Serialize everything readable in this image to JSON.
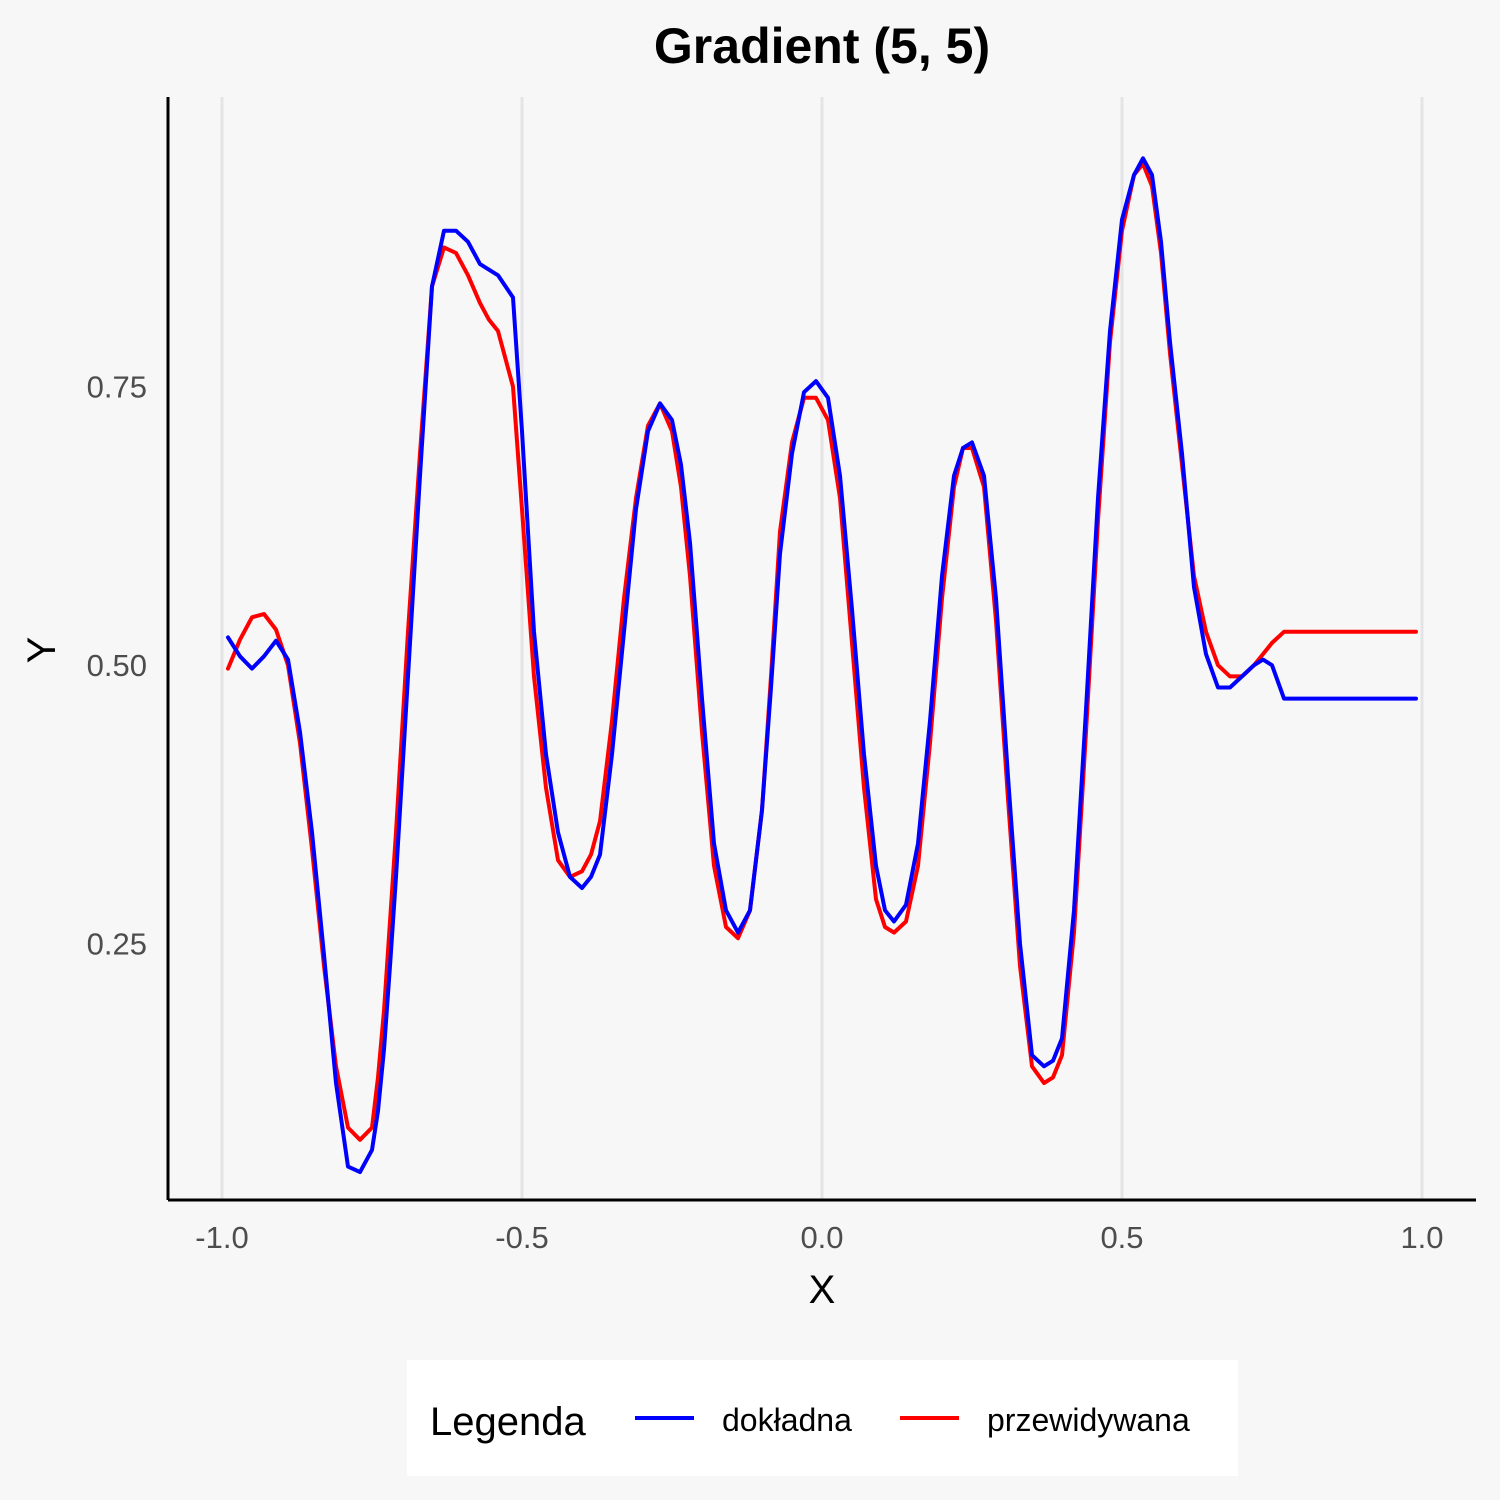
{
  "chart_data": {
    "type": "line",
    "title": "Gradient (5, 5)",
    "xlabel": "X",
    "ylabel": "Y",
    "xlim": [
      -1.09,
      1.09
    ],
    "ylim": [
      0.02,
      1.01
    ],
    "xticks": [
      -1.0,
      -0.5,
      0.0,
      0.5,
      1.0
    ],
    "xtick_labels": [
      "-1.0",
      "-0.5",
      "0.0",
      "0.5",
      "1.0"
    ],
    "yticks": [
      0.25,
      0.5,
      0.75
    ],
    "ytick_labels": [
      "0.25",
      "0.50",
      "0.75"
    ],
    "grid": "vertical major lines only",
    "legend": {
      "title": "Legenda",
      "position": "bottom"
    },
    "series": [
      {
        "name": "dokładna",
        "color": "#0000ff",
        "x": [
          -0.99,
          -0.97,
          -0.95,
          -0.93,
          -0.91,
          -0.89,
          -0.87,
          -0.85,
          -0.83,
          -0.81,
          -0.79,
          -0.77,
          -0.75,
          -0.74,
          -0.73,
          -0.72,
          -0.71,
          -0.7,
          -0.69,
          -0.67,
          -0.65,
          -0.63,
          -0.61,
          -0.59,
          -0.57,
          -0.555,
          -0.54,
          -0.515,
          -0.5,
          -0.48,
          -0.46,
          -0.44,
          -0.42,
          -0.4,
          -0.385,
          -0.37,
          -0.35,
          -0.33,
          -0.31,
          -0.29,
          -0.27,
          -0.25,
          -0.235,
          -0.22,
          -0.2,
          -0.18,
          -0.16,
          -0.14,
          -0.12,
          -0.1,
          -0.085,
          -0.07,
          -0.05,
          -0.03,
          -0.01,
          0.01,
          0.03,
          0.05,
          0.07,
          0.09,
          0.105,
          0.12,
          0.14,
          0.16,
          0.18,
          0.2,
          0.22,
          0.235,
          0.25,
          0.27,
          0.29,
          0.31,
          0.33,
          0.35,
          0.37,
          0.385,
          0.4,
          0.42,
          0.44,
          0.46,
          0.48,
          0.5,
          0.52,
          0.535,
          0.55,
          0.565,
          0.58,
          0.6,
          0.62,
          0.64,
          0.66,
          0.68,
          0.7,
          0.72,
          0.735,
          0.75,
          0.77,
          0.79,
          0.81,
          0.83,
          0.85,
          0.87,
          0.89,
          0.91,
          0.93,
          0.95,
          0.97,
          0.99
        ],
        "y": [
          0.525,
          0.508,
          0.497,
          0.508,
          0.522,
          0.505,
          0.44,
          0.35,
          0.24,
          0.125,
          0.05,
          0.045,
          0.065,
          0.1,
          0.155,
          0.23,
          0.31,
          0.4,
          0.49,
          0.67,
          0.84,
          0.89,
          0.89,
          0.88,
          0.86,
          0.855,
          0.85,
          0.83,
          0.71,
          0.53,
          0.42,
          0.35,
          0.31,
          0.3,
          0.31,
          0.33,
          0.42,
          0.53,
          0.64,
          0.71,
          0.735,
          0.72,
          0.68,
          0.61,
          0.47,
          0.34,
          0.28,
          0.26,
          0.28,
          0.37,
          0.48,
          0.6,
          0.69,
          0.745,
          0.755,
          0.74,
          0.67,
          0.55,
          0.42,
          0.32,
          0.28,
          0.27,
          0.285,
          0.34,
          0.45,
          0.58,
          0.67,
          0.695,
          0.7,
          0.67,
          0.56,
          0.4,
          0.25,
          0.15,
          0.14,
          0.145,
          0.165,
          0.28,
          0.46,
          0.65,
          0.8,
          0.9,
          0.94,
          0.955,
          0.94,
          0.88,
          0.79,
          0.69,
          0.57,
          0.51,
          0.48,
          0.48,
          0.49,
          0.5,
          0.505,
          0.5,
          0.47,
          0.47,
          0.47,
          0.47,
          0.47,
          0.47,
          0.47,
          0.47,
          0.47,
          0.47,
          0.47,
          0.47
        ]
      },
      {
        "name": "przewidywana",
        "color": "#ff0000",
        "x": [
          -0.99,
          -0.97,
          -0.95,
          -0.93,
          -0.91,
          -0.89,
          -0.87,
          -0.85,
          -0.83,
          -0.81,
          -0.79,
          -0.77,
          -0.75,
          -0.74,
          -0.73,
          -0.72,
          -0.71,
          -0.7,
          -0.69,
          -0.67,
          -0.65,
          -0.63,
          -0.61,
          -0.59,
          -0.57,
          -0.555,
          -0.54,
          -0.515,
          -0.5,
          -0.48,
          -0.46,
          -0.44,
          -0.42,
          -0.4,
          -0.385,
          -0.37,
          -0.35,
          -0.33,
          -0.31,
          -0.29,
          -0.27,
          -0.25,
          -0.235,
          -0.22,
          -0.2,
          -0.18,
          -0.16,
          -0.14,
          -0.12,
          -0.1,
          -0.085,
          -0.07,
          -0.05,
          -0.03,
          -0.01,
          0.01,
          0.03,
          0.05,
          0.07,
          0.09,
          0.105,
          0.12,
          0.14,
          0.16,
          0.18,
          0.2,
          0.22,
          0.235,
          0.25,
          0.27,
          0.29,
          0.31,
          0.33,
          0.35,
          0.37,
          0.385,
          0.4,
          0.42,
          0.44,
          0.46,
          0.48,
          0.5,
          0.52,
          0.535,
          0.55,
          0.565,
          0.58,
          0.6,
          0.62,
          0.64,
          0.66,
          0.68,
          0.7,
          0.72,
          0.735,
          0.75,
          0.77,
          0.79,
          0.81,
          0.83,
          0.85,
          0.87,
          0.89,
          0.91,
          0.93,
          0.95,
          0.97,
          0.99
        ],
        "y": [
          0.497,
          0.523,
          0.543,
          0.546,
          0.532,
          0.5,
          0.43,
          0.335,
          0.23,
          0.14,
          0.085,
          0.074,
          0.085,
          0.13,
          0.19,
          0.27,
          0.35,
          0.44,
          0.53,
          0.69,
          0.84,
          0.875,
          0.87,
          0.85,
          0.825,
          0.81,
          0.8,
          0.75,
          0.64,
          0.49,
          0.39,
          0.325,
          0.31,
          0.315,
          0.33,
          0.36,
          0.45,
          0.56,
          0.65,
          0.715,
          0.735,
          0.71,
          0.66,
          0.58,
          0.44,
          0.32,
          0.265,
          0.255,
          0.28,
          0.37,
          0.49,
          0.62,
          0.7,
          0.74,
          0.74,
          0.72,
          0.65,
          0.52,
          0.39,
          0.29,
          0.265,
          0.26,
          0.27,
          0.32,
          0.43,
          0.56,
          0.66,
          0.695,
          0.695,
          0.66,
          0.54,
          0.38,
          0.23,
          0.14,
          0.125,
          0.13,
          0.15,
          0.26,
          0.44,
          0.63,
          0.79,
          0.89,
          0.94,
          0.95,
          0.93,
          0.87,
          0.78,
          0.68,
          0.58,
          0.53,
          0.5,
          0.49,
          0.49,
          0.5,
          0.51,
          0.52,
          0.53,
          0.53,
          0.53,
          0.53,
          0.53,
          0.53,
          0.53,
          0.53,
          0.53,
          0.53,
          0.53,
          0.53
        ]
      }
    ]
  }
}
